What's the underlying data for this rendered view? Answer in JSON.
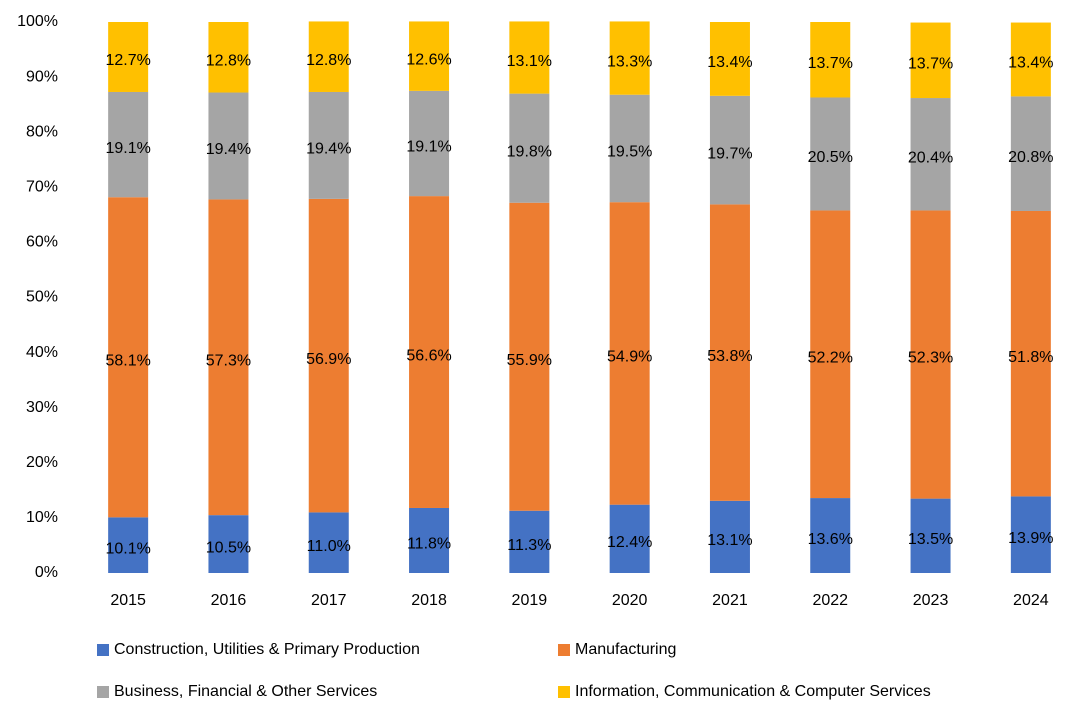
{
  "chart_data": {
    "type": "stacked_bar",
    "categories": [
      "2015",
      "2016",
      "2017",
      "2018",
      "2019",
      "2020",
      "2021",
      "2022",
      "2023",
      "2024"
    ],
    "series": [
      {
        "name": "Construction, Utilities & Primary Production",
        "color": "#4472c4",
        "values": [
          10.1,
          10.5,
          11.0,
          11.8,
          11.3,
          12.4,
          13.1,
          13.6,
          13.5,
          13.9
        ],
        "value_labels": [
          "10.1%",
          "10.5%",
          "11.0%",
          "11.8%",
          "11.3%",
          "12.4%",
          "13.1%",
          "13.6%",
          "13.5%",
          "13.9%"
        ]
      },
      {
        "name": "Manufacturing",
        "color": "#ed7d31",
        "values": [
          58.1,
          57.3,
          56.9,
          56.6,
          55.9,
          54.9,
          53.8,
          52.2,
          52.3,
          51.8
        ],
        "value_labels": [
          "58.1%",
          "57.3%",
          "56.9%",
          "56.6%",
          "55.9%",
          "54.9%",
          "53.8%",
          "52.2%",
          "52.3%",
          "51.8%"
        ]
      },
      {
        "name": "Business, Financial & Other Services",
        "color": "#a5a5a5",
        "values": [
          19.1,
          19.4,
          19.4,
          19.1,
          19.8,
          19.5,
          19.7,
          20.5,
          20.4,
          20.8
        ],
        "value_labels": [
          "19.1%",
          "19.4%",
          "19.4%",
          "19.1%",
          "19.8%",
          "19.5%",
          "19.7%",
          "20.5%",
          "20.4%",
          "20.8%"
        ]
      },
      {
        "name": "Information, Communication & Computer Services",
        "color": "#ffc000",
        "values": [
          12.7,
          12.8,
          12.8,
          12.6,
          13.1,
          13.3,
          13.4,
          13.7,
          13.7,
          13.4
        ],
        "value_labels": [
          "12.7%",
          "12.8%",
          "12.8%",
          "12.6%",
          "13.1%",
          "13.3%",
          "13.4%",
          "13.7%",
          "13.7%",
          "13.4%"
        ]
      }
    ],
    "ylim": [
      0,
      100
    ],
    "yticks": [
      {
        "value": 0,
        "label": "0%"
      },
      {
        "value": 10,
        "label": "10%"
      },
      {
        "value": 20,
        "label": "20%"
      },
      {
        "value": 30,
        "label": "30%"
      },
      {
        "value": 40,
        "label": "40%"
      },
      {
        "value": 50,
        "label": "50%"
      },
      {
        "value": 60,
        "label": "60%"
      },
      {
        "value": 70,
        "label": "70%"
      },
      {
        "value": 80,
        "label": "80%"
      },
      {
        "value": 90,
        "label": "90%"
      },
      {
        "value": 100,
        "label": "100%"
      }
    ],
    "grid": false,
    "legend": "bottom"
  }
}
